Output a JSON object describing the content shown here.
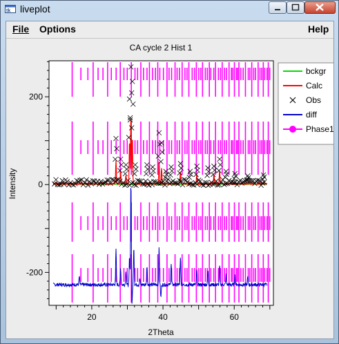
{
  "window": {
    "title": "liveplot",
    "controls": [
      "minimize",
      "maximize",
      "close"
    ]
  },
  "menubar": {
    "file_label": "File",
    "options_label": "Options",
    "help_label": "Help"
  },
  "chart_data": {
    "type": "line",
    "title": "CA cycle 2 Hist 1",
    "xlabel": "2Theta",
    "ylabel": "Intensity",
    "xlim": [
      8,
      71
    ],
    "ylim": [
      -275,
      282
    ],
    "x_ticks": [
      20,
      40,
      60
    ],
    "y_ticks": [
      200,
      0,
      -200
    ],
    "legend": {
      "placement": "right",
      "entries": [
        {
          "name": "bckgr",
          "color": "#00dd00",
          "marker": "line"
        },
        {
          "name": "Calc",
          "color": "#ff0000",
          "marker": "line"
        },
        {
          "name": "Obs",
          "color": "#000000",
          "marker": "x"
        },
        {
          "name": "diff",
          "color": "#0000cc",
          "marker": "line"
        },
        {
          "name": "Phase1",
          "color": "#ff00ff",
          "marker": "circle"
        }
      ]
    },
    "series": [
      {
        "name": "bckgr",
        "baseline": 1
      },
      {
        "name": "Obs",
        "baseline": 5,
        "peaks": [
          {
            "x": 26.8,
            "y": 105
          },
          {
            "x": 28.1,
            "y": 58
          },
          {
            "x": 29.6,
            "y": 45
          },
          {
            "x": 30.6,
            "y": 195
          },
          {
            "x": 31.0,
            "y": 268
          },
          {
            "x": 31.4,
            "y": 235
          },
          {
            "x": 32.2,
            "y": 45
          },
          {
            "x": 35.5,
            "y": 45
          },
          {
            "x": 37.1,
            "y": 40
          },
          {
            "x": 38.9,
            "y": 118
          },
          {
            "x": 39.6,
            "y": 95
          },
          {
            "x": 40.8,
            "y": 30
          },
          {
            "x": 42.3,
            "y": 40
          },
          {
            "x": 44.9,
            "y": 48
          },
          {
            "x": 47.6,
            "y": 30
          },
          {
            "x": 49.5,
            "y": 42
          },
          {
            "x": 52.6,
            "y": 38
          },
          {
            "x": 54.3,
            "y": 42
          },
          {
            "x": 55.9,
            "y": 58
          },
          {
            "x": 57.7,
            "y": 30
          },
          {
            "x": 60.2,
            "y": 25
          },
          {
            "x": 63.8,
            "y": 20
          },
          {
            "x": 68.2,
            "y": 22
          }
        ]
      },
      {
        "name": "Calc",
        "baseline": 2,
        "peaks": [
          {
            "x": 26.8,
            "y": 55
          },
          {
            "x": 28.1,
            "y": 30
          },
          {
            "x": 29.6,
            "y": 22
          },
          {
            "x": 30.6,
            "y": 100
          },
          {
            "x": 31.0,
            "y": 160
          },
          {
            "x": 31.4,
            "y": 110
          },
          {
            "x": 38.9,
            "y": 55
          },
          {
            "x": 39.6,
            "y": 38
          },
          {
            "x": 44.9,
            "y": 30
          },
          {
            "x": 49.5,
            "y": 25
          },
          {
            "x": 55.9,
            "y": 32
          },
          {
            "x": 54.3,
            "y": 22
          }
        ]
      },
      {
        "name": "diff",
        "baseline": -228,
        "peaks": [
          {
            "x": 16.5,
            "y": -210
          },
          {
            "x": 26.8,
            "y": -148
          },
          {
            "x": 28.1,
            "y": -190
          },
          {
            "x": 29.6,
            "y": -195
          },
          {
            "x": 30.6,
            "y": -165
          },
          {
            "x": 31.0,
            "y": 10
          },
          {
            "x": 31.3,
            "y": -275
          },
          {
            "x": 31.8,
            "y": -140
          },
          {
            "x": 33.5,
            "y": -215
          },
          {
            "x": 35.5,
            "y": -185
          },
          {
            "x": 38.9,
            "y": -145
          },
          {
            "x": 39.4,
            "y": -258
          },
          {
            "x": 42.3,
            "y": -180
          },
          {
            "x": 44.9,
            "y": -168
          },
          {
            "x": 45.8,
            "y": -225
          },
          {
            "x": 49.5,
            "y": -195
          },
          {
            "x": 52.6,
            "y": -195
          },
          {
            "x": 55.9,
            "y": -185
          },
          {
            "x": 57.7,
            "y": -205
          },
          {
            "x": 60.2,
            "y": -205
          },
          {
            "x": 63.8,
            "y": -210
          }
        ]
      },
      {
        "name": "Phase1",
        "type": "reflection-ticks",
        "range": [
          14.5,
          70.3
        ]
      }
    ]
  }
}
